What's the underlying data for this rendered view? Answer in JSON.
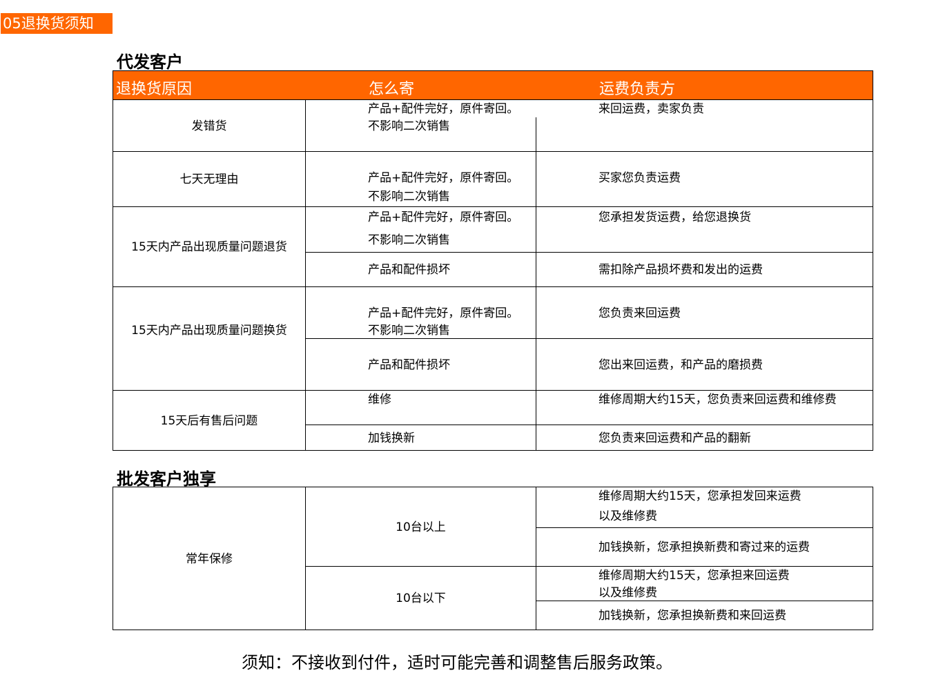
{
  "tag": "05退换货须知",
  "section1": {
    "title": "代发客户",
    "headers": [
      "退换货原因",
      "怎么寄",
      "运费负责方"
    ],
    "rows": [
      {
        "reason": "发错货",
        "items": [
          {
            "how": [
              "产品+配件完好，原件寄回。",
              "不影响二次销售"
            ],
            "fee": "来回运费，卖家负责"
          }
        ]
      },
      {
        "reason": "七天无理由",
        "items": [
          {
            "how": [
              "产品+配件完好，原件寄回。",
              "不影响二次销售"
            ],
            "fee": "买家您负责运费"
          }
        ]
      },
      {
        "reason": "15天内产品出现质量问题退货",
        "items": [
          {
            "how": [
              "产品+配件完好，原件寄回。",
              "不影响二次销售"
            ],
            "fee": "您承担发货运费，给您退换货"
          },
          {
            "how": [
              "产品和配件损坏"
            ],
            "fee": "需扣除产品损坏费和发出的运费"
          }
        ]
      },
      {
        "reason": "15天内产品出现质量问题换货",
        "items": [
          {
            "how": [
              "产品+配件完好，原件寄回。",
              "不影响二次销售"
            ],
            "fee": "您负责来回运费"
          },
          {
            "how": [
              "产品和配件损坏"
            ],
            "fee": "您出来回运费，和产品的磨损费"
          }
        ]
      },
      {
        "reason": "15天后有售后问题",
        "items": [
          {
            "how": [
              "维修"
            ],
            "fee": "维修周期大约15天，您负责来回运费和维修费"
          },
          {
            "how": [
              "加钱换新"
            ],
            "fee": "您负责来回运费和产品的翻新"
          }
        ]
      }
    ]
  },
  "section2": {
    "title": "批发客户独享",
    "reason": "常年保修",
    "groups": [
      {
        "qty": "10台以上",
        "fees": [
          [
            "维修周期大约15天，您承担发回来运费",
            "以及维修费"
          ],
          [
            "加钱换新，您承担换新费和寄过来的运费"
          ]
        ]
      },
      {
        "qty": "10台以下",
        "fees": [
          [
            "维修周期大约15天，您承担来回运费",
            "以及维修费"
          ],
          [
            "加钱换新，您承担换新费和来回运费"
          ]
        ]
      }
    ]
  },
  "footer": "须知：不接收到付件，适时可能完善和调整售后服务政策。",
  "colors": {
    "accent": "#ff6600"
  }
}
